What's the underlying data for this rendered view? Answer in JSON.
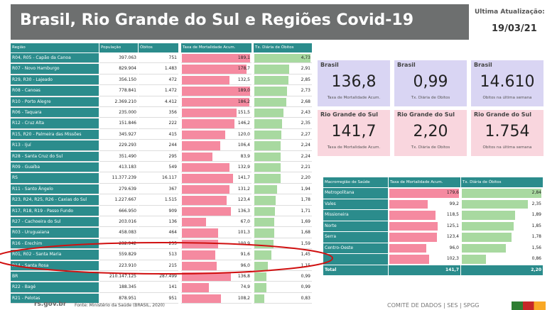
{
  "header": {
    "title": "Brasil, Rio Grande do Sul e Regiões Covid-19",
    "update_label": "Última Atualização:",
    "update_date": "19/03/21"
  },
  "table": {
    "columns": [
      "Região",
      "População",
      "Óbitos",
      "Taxa de Mortalidade Acum.",
      "Tx. Diária de Óbitos"
    ],
    "rows": [
      [
        "R04, R05 - Capão da Canoa",
        "397.063",
        "751",
        "189,1",
        "4,73"
      ],
      [
        "R07 - Novo Hamburgo",
        "829.904",
        "1.483",
        "178,7",
        "2,91"
      ],
      [
        "R29, R30 - Lajeado",
        "356.150",
        "472",
        "132,5",
        "2,85"
      ],
      [
        "R08 - Canoas",
        "778.841",
        "1.472",
        "189,0",
        "2,73"
      ],
      [
        "R10 - Porto Alegre",
        "2.369.210",
        "4.412",
        "186,2",
        "2,68"
      ],
      [
        "R06 - Taquara",
        "235.000",
        "356",
        "151,5",
        "2,43"
      ],
      [
        "R12 - Cruz Alta",
        "151.846",
        "222",
        "146,2",
        "2,35"
      ],
      [
        "R15, R20 - Palmeira das Missões",
        "345.927",
        "415",
        "120,0",
        "2,27"
      ],
      [
        "R13 - Ijuí",
        "229.293",
        "244",
        "106,4",
        "2,24"
      ],
      [
        "R28 - Santa Cruz do Sul",
        "351.490",
        "295",
        "83,9",
        "2,24"
      ],
      [
        "R09 - Guaíba",
        "413.183",
        "549",
        "132,9",
        "2,21"
      ],
      [
        "RS",
        "11.377.239",
        "16.117",
        "141,7",
        "2,20"
      ],
      [
        "R11 - Santo Ângelo",
        "279.639",
        "367",
        "131,2",
        "1,94"
      ],
      [
        "R23, R24, R25, R26 - Caxias do Sul",
        "1.227.667",
        "1.515",
        "123,4",
        "1,78"
      ],
      [
        "R17, R18, R19 - Passo Fundo",
        "666.950",
        "909",
        "136,3",
        "1,71"
      ],
      [
        "R27 - Cachoeira do Sul",
        "203.016",
        "136",
        "67,0",
        "1,69"
      ],
      [
        "R03 - Uruguaiana",
        "458.083",
        "464",
        "101,3",
        "1,68"
      ],
      [
        "R16 - Erechim",
        "232.942",
        "235",
        "100,9",
        "1,59"
      ],
      [
        "R01, R02 - Santa Maria",
        "559.829",
        "513",
        "91,6",
        "1,45"
      ],
      [
        "R14 - Santa Rosa",
        "223.910",
        "215",
        "96,0",
        "1,15"
      ],
      [
        "BR",
        "210.147.125",
        "287.499",
        "136,8",
        "0,99"
      ],
      [
        "R22 - Bagé",
        "188.345",
        "141",
        "74,9",
        "0,99"
      ],
      [
        "R21 - Pelotas",
        "878.951",
        "951",
        "108,2",
        "0,83"
      ]
    ]
  },
  "cards": [
    {
      "region": "Brasil",
      "value": "136,8",
      "label": "Taxa de Mortalidade Acum."
    },
    {
      "region": "Brasil",
      "value": "0,99",
      "label": "Tx. Diária de Óbitos"
    },
    {
      "region": "Brasil",
      "value": "14.610",
      "label": "Óbitos na última semana"
    },
    {
      "region": "Rio Grande do Sul",
      "value": "141,7",
      "label": "Taxa de Mortalidade Acum."
    },
    {
      "region": "Rio Grande do Sul",
      "value": "2,20",
      "label": "Tx. Diária de Óbitos"
    },
    {
      "region": "Rio Grande do Sul",
      "value": "1.754",
      "label": "Óbitos na última semana"
    }
  ],
  "macro": {
    "columns": [
      "Macrorregião de Saúde",
      "Taxa de Mortalidade Acum.",
      "Tx. Diária de Óbitos"
    ],
    "rows": [
      [
        "Metropolitana",
        "179,6",
        "2,84"
      ],
      [
        "Vales",
        "99,2",
        "2,35"
      ],
      [
        "Missioneira",
        "118,5",
        "1,89"
      ],
      [
        "Norte",
        "125,1",
        "1,85"
      ],
      [
        "Serra",
        "123,4",
        "1,78"
      ],
      [
        "Centro-Oeste",
        "96,0",
        "1,56"
      ],
      [
        null,
        "102,3",
        "0,86"
      ],
      [
        "Total",
        "141,7",
        "2,20"
      ]
    ]
  },
  "footer": {
    "site": "rs.gov.br",
    "source": "Fonte: Ministério da Saúde (BRASIL, 2020)",
    "committee": "COMITÊ DE DADOS | SES | SPGG"
  }
}
